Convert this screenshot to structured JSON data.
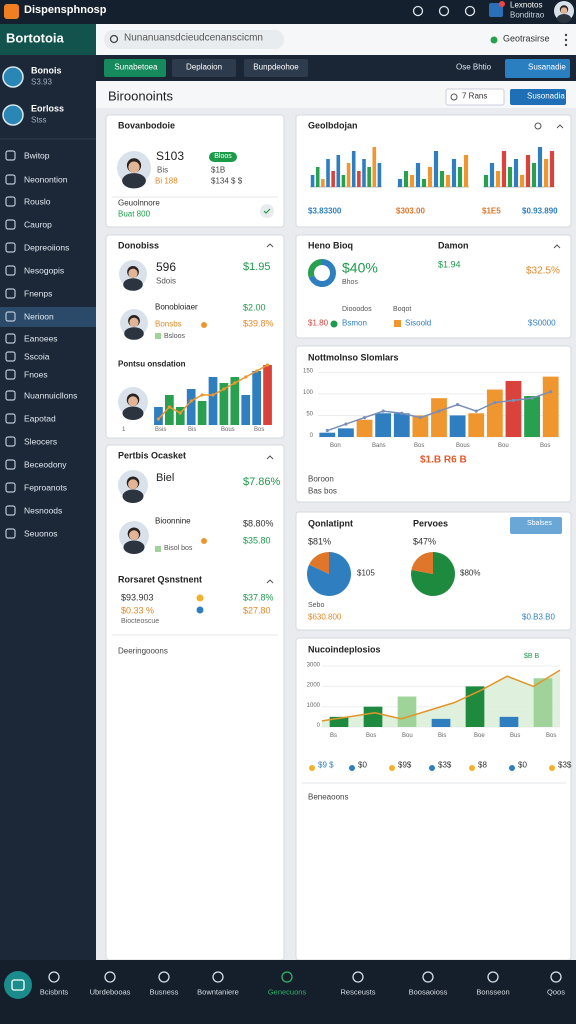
{
  "topbar": {
    "app_title": "Dispensphnosp",
    "user_name": "Lexnotos",
    "user_role": "Bonditrao"
  },
  "brand": "Bortotoia",
  "search_placeholder": "Nunanuansdcieudcenanscicmn",
  "status": "Geotrasirse",
  "sidebar": {
    "profiles": [
      {
        "name": "Bonois",
        "sub": "S3.93"
      },
      {
        "name": "Eorloss",
        "sub": "Stss"
      }
    ],
    "items": [
      "Bwitop",
      "Neonontion",
      "Rouslo",
      "Caurop",
      "Depreoiions",
      "Nesogopis",
      "Fnenps",
      "Nerioon",
      "Eanoees",
      "Sscoia",
      "Fnoes",
      "Nuannuicllons",
      "Eapotad",
      "Sleocers",
      "Beceodony",
      "Feproanots",
      "Nesnoods",
      "Seuonos"
    ],
    "active": 7
  },
  "tabs": {
    "items": [
      "Sunabetoea",
      "Deplaoion",
      "Bunpdeohoe"
    ],
    "active": 0,
    "right_label": "Ose Bhtio",
    "button": "Susanadie"
  },
  "header": {
    "title": "Biroonoints",
    "filter": "7 Rans",
    "export": "Susonadia"
  },
  "cards": {
    "overview": {
      "title": "Bovanbodoie",
      "metric": "S103",
      "metric_sub": "Bis",
      "metric_note": "Bi 188",
      "badge": "Bloos",
      "value1": "$1B",
      "value2": "$134 $ $",
      "footer_label": "Geuolnnore",
      "footer_value": "Buat 800"
    },
    "geo": {
      "title": "Geolbdojan",
      "charts": [
        {
          "values": [
            3,
            5,
            2,
            7,
            4,
            8,
            3,
            6,
            9,
            4,
            7,
            5,
            10,
            6
          ],
          "ylim": [
            0,
            10
          ],
          "colors": [
            "#2f7fc0",
            "#28a04f",
            "#f0962f",
            "#2f7fc0",
            "#d9433c"
          ]
        },
        {
          "values": [
            2,
            4,
            3,
            6,
            2,
            5,
            9,
            4,
            3,
            7,
            5,
            8
          ],
          "ylim": [
            0,
            10
          ],
          "colors": [
            "#2f7fc0",
            "#28a04f",
            "#f0962f"
          ]
        },
        {
          "values": [
            3,
            6,
            4,
            9,
            5,
            7,
            3,
            8,
            6,
            10,
            7,
            9
          ],
          "ylim": [
            0,
            10
          ],
          "colors": [
            "#28a04f",
            "#2f7fc0",
            "#f0962f",
            "#d9433c"
          ]
        }
      ],
      "footer": [
        "$3.83300",
        "$303.00",
        "$1E5",
        "$0.93.890"
      ]
    },
    "donors": {
      "title": "Donobiss",
      "rows": [
        {
          "name": "596",
          "sub": "Sdois",
          "value": "$1.95"
        },
        {
          "name": "Bonobloiaer",
          "sub": "Bonsbs",
          "value": "$2.00",
          "value2": "$39.8%",
          "note": "Bsloos"
        }
      ],
      "chart_title": "Pontsu onsdation",
      "chart": {
        "values": [
          3,
          5,
          3,
          6,
          4,
          8,
          7,
          8,
          5,
          9,
          10
        ],
        "ylim": [
          0,
          10
        ],
        "colors": [
          "#2f7fc0",
          "#28a04f",
          "#28a04f",
          "#2f7fc0",
          "#28a04f",
          "#2f7fc0",
          "#28a04f",
          "#28a04f",
          "#2f7fc0",
          "#2f7fc0",
          "#d9433c"
        ],
        "line": [
          1,
          3,
          2,
          4,
          5,
          5,
          6,
          7,
          8,
          9,
          10
        ],
        "line_color": "#f0962f"
      },
      "axis_labels": [
        "1",
        "Bsis",
        "Bis",
        "Bous",
        "Bos"
      ]
    },
    "donut": {
      "title": "Heno Bioq",
      "title2": "Damon",
      "value": "$40%",
      "sub": "Bhos",
      "value_b": "$1.94",
      "value_c": "$32.5%",
      "note1": "Boqot",
      "note2": "Diooodos",
      "legend": [
        "$1.80",
        "Bsmon",
        "Sisoold",
        "$S0000"
      ],
      "segments": [
        70,
        30
      ],
      "colors": [
        "#2f7fc0",
        "#28a04f"
      ]
    },
    "trends": {
      "title": "Nottmolnso Slomlars",
      "values": [
        10,
        20,
        40,
        55,
        55,
        50,
        90,
        50,
        55,
        110,
        130,
        95,
        140
      ],
      "colors": [
        "#2f7fc0",
        "#2f7fc0",
        "#f0962f",
        "#2f7fc0",
        "#2f7fc0",
        "#f0962f",
        "#f0962f",
        "#2f7fc0",
        "#f0962f",
        "#f0962f",
        "#d9433c",
        "#28a04f",
        "#f0962f"
      ],
      "line": [
        15,
        30,
        45,
        60,
        55,
        45,
        60,
        75,
        60,
        80,
        85,
        90,
        105
      ],
      "line_color": "#7a8fb8",
      "ylim": [
        0,
        160
      ],
      "yticks": [
        0,
        50,
        100,
        150
      ],
      "x_labels": [
        "Bon",
        "Bans",
        "Bos",
        "Bous",
        "Bou",
        "Bos"
      ],
      "highlight": "$1.B R6 B",
      "footer": [
        "Boroon",
        "Bas bos"
      ]
    },
    "portfolio": {
      "title": "Pertbis Ocasket",
      "rows": [
        {
          "name": "Biel",
          "value": "$7.86%"
        },
        {
          "name": "Bioonnine",
          "value": "$8.80%",
          "sub": "Bisol bos",
          "value2": "$35.80"
        }
      ],
      "section": "Rorsaret Qsnstnent",
      "lines": [
        {
          "label": "$93.903",
          "value": "$37.8%"
        },
        {
          "label": "$0.33 %",
          "value": "$27.80"
        }
      ],
      "note": "Biocteoscue",
      "footer": "Deeringooons"
    },
    "compare": {
      "title": "Qonlatipnt",
      "title2": "Pervoes",
      "button": "Sbalses",
      "pies": [
        {
          "label": "$81%",
          "value": "$105",
          "segments": [
            82,
            18
          ],
          "colors": [
            "#2f7fc0",
            "#e0762a"
          ]
        },
        {
          "label": "$47%",
          "value": "$80%",
          "segments": [
            78,
            22
          ],
          "colors": [
            "#1e8a3e",
            "#e0762a"
          ]
        }
      ],
      "note": "Sebo",
      "left_value": "$630.800",
      "right_value": "$0.B3.B0"
    },
    "history": {
      "title": "Nucoindeplosios",
      "badge": "$B B",
      "values": [
        500,
        1000,
        1500,
        400,
        2000,
        500,
        2400
      ],
      "colors": [
        "#1e8a3e",
        "#1e8a3e",
        "#9fd39a",
        "#2f7fc0",
        "#1e8a3e",
        "#2f7fc0",
        "#9fd39a"
      ],
      "area": [
        300,
        500,
        700,
        400,
        800,
        1200,
        1800,
        2500,
        2000,
        2800
      ],
      "area_color": "#e0962a",
      "ylim": [
        0,
        3300
      ],
      "yticks": [
        0,
        1000,
        2000,
        3000
      ],
      "x_labels": [
        "Bs",
        "Bos",
        "Bou",
        "Bis",
        "Boe",
        "Bus",
        "Bos"
      ],
      "stats": [
        "$9 $",
        "$0",
        "$9$",
        "$3$",
        "$8",
        "$0",
        "$3$"
      ],
      "footer": "Beneaoons"
    }
  },
  "nav": {
    "items": [
      "Bcisbnts",
      "Ubrdebooas",
      "Busness",
      "Bowntaniere",
      "Genecuons",
      "Resceusts",
      "Boosaoioss",
      "Bonsseon",
      "Qoos"
    ],
    "active": 4
  }
}
